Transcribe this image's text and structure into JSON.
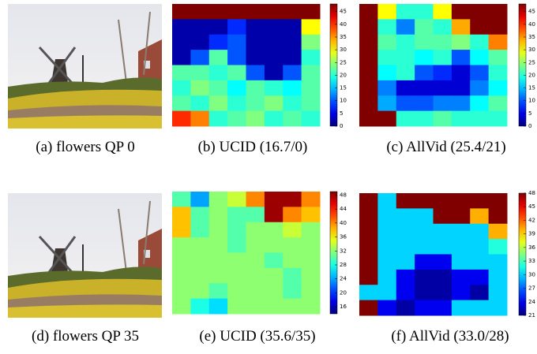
{
  "panels": [
    {
      "caption": "(a) flowers QP 0"
    },
    {
      "caption": "(b) UCID (16.7/0)",
      "vlim": [
        0,
        48
      ],
      "cbticks": [
        0,
        5,
        10,
        15,
        20,
        25,
        30,
        35,
        40,
        45
      ],
      "cells": [
        [
          48,
          48,
          48,
          48,
          48,
          48,
          48,
          48
        ],
        [
          2,
          2,
          2,
          8,
          2,
          2,
          2,
          30
        ],
        [
          2,
          2,
          8,
          10,
          2,
          2,
          2,
          24
        ],
        [
          2,
          10,
          22,
          10,
          2,
          2,
          2,
          20
        ],
        [
          22,
          22,
          20,
          22,
          10,
          2,
          10,
          22
        ],
        [
          20,
          24,
          22,
          18,
          22,
          20,
          18,
          22
        ],
        [
          22,
          20,
          24,
          20,
          22,
          24,
          20,
          22
        ],
        [
          40,
          36,
          20,
          22,
          24,
          20,
          22,
          20
        ]
      ]
    },
    {
      "caption": "(c) AllVid (25.4/21)",
      "vlim": [
        0,
        48
      ],
      "cbticks": [
        0,
        5,
        10,
        15,
        20,
        25,
        30,
        35,
        40,
        45
      ],
      "cells": [
        [
          48,
          30,
          20,
          20,
          30,
          48,
          48,
          48
        ],
        [
          48,
          20,
          12,
          22,
          20,
          34,
          48,
          48
        ],
        [
          48,
          22,
          20,
          22,
          22,
          24,
          20,
          36
        ],
        [
          48,
          20,
          20,
          18,
          20,
          10,
          18,
          22
        ],
        [
          48,
          18,
          20,
          10,
          8,
          4,
          10,
          20
        ],
        [
          48,
          12,
          4,
          4,
          4,
          4,
          12,
          18
        ],
        [
          48,
          14,
          10,
          10,
          12,
          12,
          18,
          22
        ],
        [
          48,
          48,
          20,
          20,
          22,
          20,
          20,
          20
        ]
      ]
    },
    {
      "caption": "(d) flowers QP 35"
    },
    {
      "caption": "(e) UCID (35.6/35)",
      "vlim": [
        14,
        49
      ],
      "cbticks": [
        16,
        20,
        24,
        28,
        32,
        36,
        40,
        44,
        48
      ],
      "cells": [
        [
          30,
          24,
          32,
          34,
          40,
          48,
          48,
          40
        ],
        [
          38,
          30,
          32,
          30,
          30,
          48,
          40,
          38
        ],
        [
          38,
          30,
          32,
          30,
          32,
          32,
          34,
          32
        ],
        [
          32,
          32,
          32,
          30,
          32,
          32,
          32,
          32
        ],
        [
          32,
          32,
          32,
          32,
          32,
          30,
          32,
          32
        ],
        [
          32,
          32,
          32,
          32,
          32,
          32,
          30,
          32
        ],
        [
          32,
          32,
          30,
          32,
          32,
          32,
          30,
          32
        ],
        [
          32,
          28,
          26,
          32,
          32,
          32,
          32,
          32
        ]
      ]
    },
    {
      "caption": "(f) AllVid (33.0/28)",
      "vlim": [
        21,
        48
      ],
      "cbticks": [
        21,
        24,
        27,
        30,
        33,
        36,
        39,
        42,
        45,
        48
      ],
      "cells": [
        [
          48,
          30,
          48,
          48,
          48,
          48,
          48,
          48
        ],
        [
          48,
          30,
          30,
          30,
          48,
          48,
          40,
          48
        ],
        [
          48,
          30,
          30,
          30,
          30,
          30,
          30,
          40
        ],
        [
          48,
          30,
          30,
          30,
          30,
          30,
          30,
          32
        ],
        [
          48,
          30,
          30,
          24,
          24,
          30,
          30,
          30
        ],
        [
          48,
          30,
          24,
          22,
          22,
          24,
          24,
          30
        ],
        [
          30,
          30,
          24,
          22,
          22,
          24,
          22,
          30
        ],
        [
          48,
          24,
          22,
          24,
          24,
          30,
          30,
          30
        ]
      ]
    }
  ]
}
